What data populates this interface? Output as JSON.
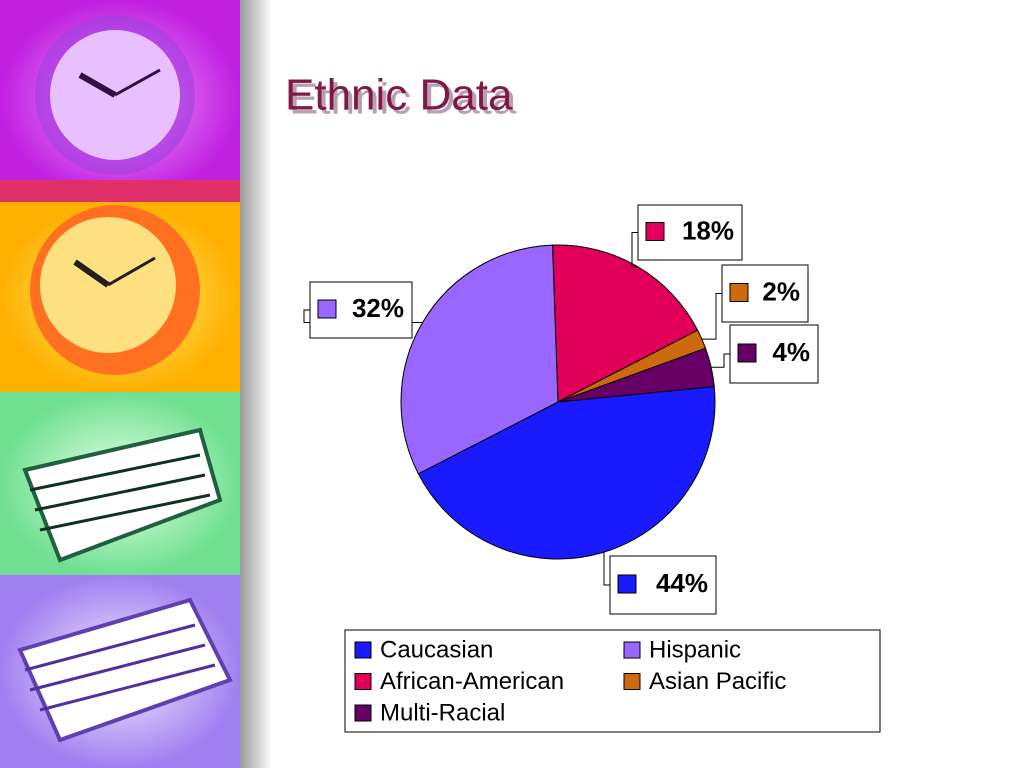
{
  "chart_data": {
    "type": "pie",
    "title": "Ethnic Data",
    "categories": [
      "Caucasian",
      "Hispanic",
      "African-American",
      "Asian Pacific",
      "Multi-Racial"
    ],
    "values": [
      44,
      32,
      18,
      2,
      4
    ],
    "value_labels": [
      "44%",
      "32%",
      "18%",
      "2%",
      "4%"
    ],
    "colors": [
      "#1a1aff",
      "#9966ff",
      "#e0005a",
      "#cc6a10",
      "#660066"
    ],
    "legend": "bottom"
  }
}
